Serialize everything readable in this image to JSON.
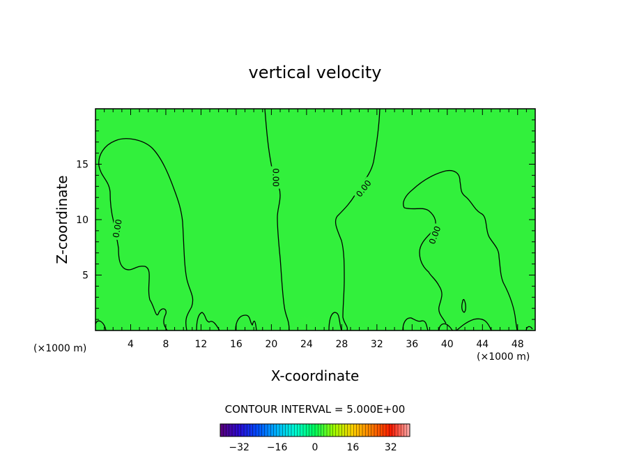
{
  "chart_data": {
    "type": "heatmap",
    "title": "vertical velocity",
    "xlabel": "X-coordinate",
    "ylabel": "Z-coordinate",
    "x_unit": "(×1000 m)",
    "y_unit": "(×1000 m)",
    "xlim": [
      0,
      50
    ],
    "ylim": [
      0,
      20
    ],
    "xticks": [
      4,
      8,
      12,
      16,
      20,
      24,
      28,
      32,
      36,
      40,
      44,
      48
    ],
    "yticks": [
      5,
      10,
      15
    ],
    "contour_value_labels": [
      {
        "text": "0.00",
        "x": 2.5,
        "z": 9.2,
        "rotation": -80
      },
      {
        "text": "0.00",
        "x": 20.5,
        "z": 13.8,
        "rotation": 90
      },
      {
        "text": "0.00",
        "x": 30.5,
        "z": 12.8,
        "rotation": -52
      },
      {
        "text": "0.00",
        "x": 38.6,
        "z": 8.6,
        "rotation": -70
      }
    ],
    "contour_interval_text": "CONTOUR INTERVAL = 5.000E+00",
    "colorbar": {
      "range": [
        -40,
        40
      ],
      "ticks": [
        -32,
        -16,
        0,
        16,
        32
      ],
      "colors": [
        "#5a0078",
        "#2a0ad2",
        "#0050ff",
        "#00b8ff",
        "#00ffd0",
        "#00ff5a",
        "#a0ff00",
        "#ffd000",
        "#ff7a00",
        "#ff1a00",
        "#ffb0b0"
      ]
    },
    "field_color": "#32f03c"
  }
}
